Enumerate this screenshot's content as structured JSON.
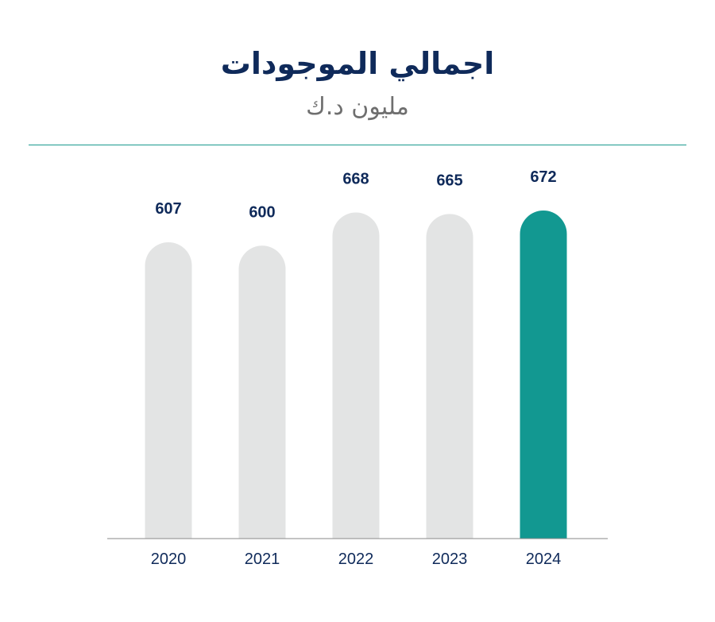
{
  "header": {
    "title": "اجمالي الموجودات",
    "subtitle": "مليون د.ك"
  },
  "colors": {
    "default_bar": "#e3e4e4",
    "highlight_bar": "#129891",
    "value_text": "#0f2a5a",
    "axis_text": "#0f2a5a",
    "baseline": "#8a8a8a"
  },
  "chart_data": {
    "type": "bar",
    "title": "اجمالي الموجودات",
    "subtitle": "مليون د.ك",
    "categories": [
      "2020",
      "2021",
      "2022",
      "2023",
      "2024"
    ],
    "values": [
      607,
      600,
      668,
      665,
      672
    ],
    "highlight_index": 4,
    "data_labels": [
      "607",
      "600",
      "668",
      "665",
      "672"
    ],
    "xlabel": "",
    "ylabel": "",
    "grid": false,
    "legend": "none"
  }
}
